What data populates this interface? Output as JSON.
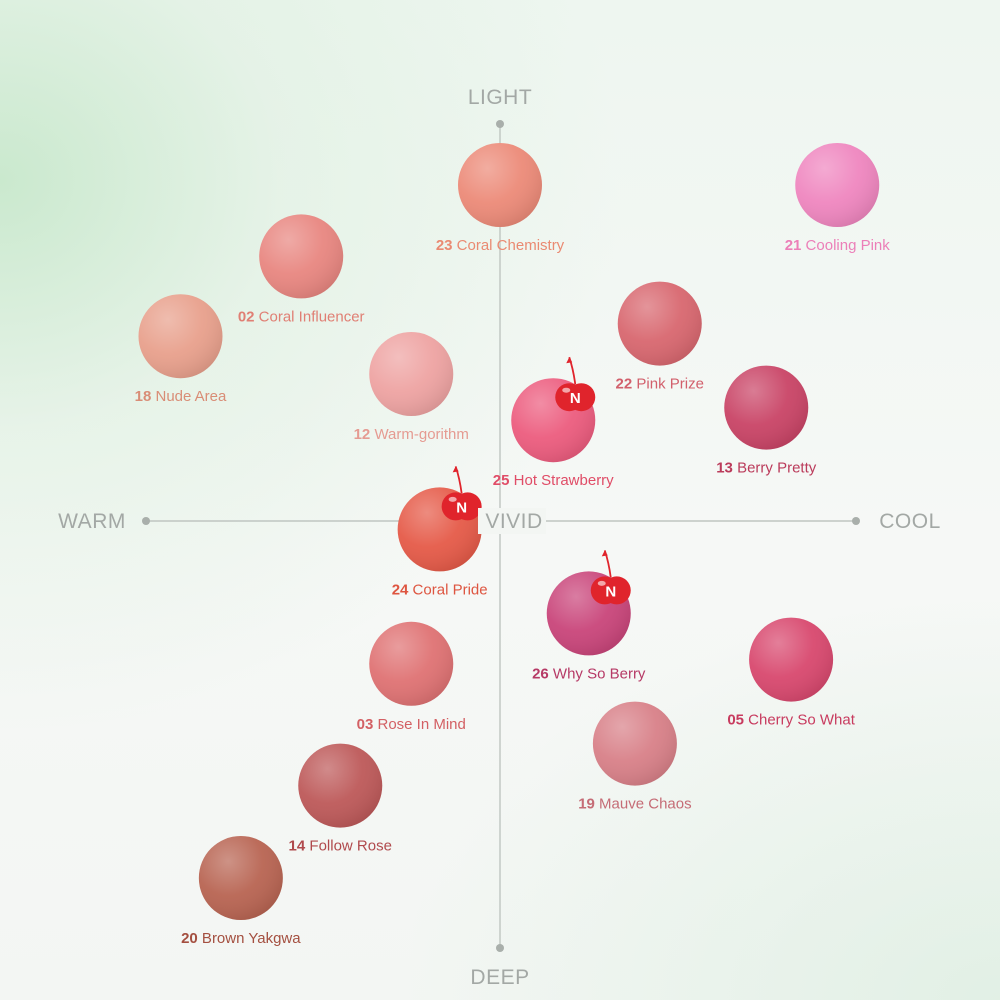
{
  "axes": {
    "top": "LIGHT",
    "bottom": "DEEP",
    "left": "WARM",
    "right": "COOL",
    "center": "VIVID"
  },
  "colors": {
    "axis_line": "#bfc5c1",
    "axis_text": "#a3a8a5",
    "badge": "#e0242c"
  },
  "badge_text": "N",
  "swatches": [
    {
      "num": "23",
      "name": "Coral Chemistry",
      "color": "#ec8a78",
      "label_color": "#ea8a72",
      "warmth": 0,
      "depth": 0.8,
      "is_new": false
    },
    {
      "num": "21",
      "name": "Cooling Pink",
      "color": "#ef86bf",
      "label_color": "#ec7fb8",
      "warmth": 0.95,
      "depth": 0.8,
      "is_new": false
    },
    {
      "num": "02",
      "name": "Coral Influencer",
      "color": "#e88680",
      "label_color": "#e07f74",
      "warmth": -0.56,
      "depth": 0.63,
      "is_new": false
    },
    {
      "num": "18",
      "name": "Nude Area",
      "color": "#e8a08c",
      "label_color": "#d98d76",
      "warmth": -0.9,
      "depth": 0.44,
      "is_new": false
    },
    {
      "num": "22",
      "name": "Pink Prize",
      "color": "#d8676f",
      "label_color": "#d2606c",
      "warmth": 0.45,
      "depth": 0.47,
      "is_new": false
    },
    {
      "num": "12",
      "name": "Warm-gorithm",
      "color": "#eea3a2",
      "label_color": "#e59b92",
      "warmth": -0.25,
      "depth": 0.35,
      "is_new": false
    },
    {
      "num": "25",
      "name": "Hot Strawberry",
      "color": "#ec5c7e",
      "label_color": "#e04d67",
      "warmth": 0.15,
      "depth": 0.24,
      "is_new": true
    },
    {
      "num": "13",
      "name": "Berry Pretty",
      "color": "#c94466",
      "label_color": "#bb3c5b",
      "warmth": 0.75,
      "depth": 0.27,
      "is_new": false
    },
    {
      "num": "24",
      "name": "Coral Pride",
      "color": "#e55a48",
      "label_color": "#de5540",
      "warmth": -0.17,
      "depth": -0.02,
      "is_new": true
    },
    {
      "num": "26",
      "name": "Why So Berry",
      "color": "#c9457a",
      "label_color": "#b63a66",
      "warmth": 0.25,
      "depth": -0.22,
      "is_new": true
    },
    {
      "num": "05",
      "name": "Cherry So What",
      "color": "#d8486e",
      "label_color": "#c83b5f",
      "warmth": 0.82,
      "depth": -0.33,
      "is_new": false
    },
    {
      "num": "03",
      "name": "Rose In Mind",
      "color": "#df7273",
      "label_color": "#d36064",
      "warmth": -0.25,
      "depth": -0.34,
      "is_new": false
    },
    {
      "num": "19",
      "name": "Mauve Chaos",
      "color": "#d88088",
      "label_color": "#c56c76",
      "warmth": 0.38,
      "depth": -0.53,
      "is_new": false
    },
    {
      "num": "14",
      "name": "Follow Rose",
      "color": "#bd5959",
      "label_color": "#b04a4d",
      "warmth": -0.45,
      "depth": -0.63,
      "is_new": false
    },
    {
      "num": "20",
      "name": "Brown Yakgwa",
      "color": "#b86452",
      "label_color": "#a44f40",
      "warmth": -0.73,
      "depth": -0.85,
      "is_new": false
    }
  ]
}
